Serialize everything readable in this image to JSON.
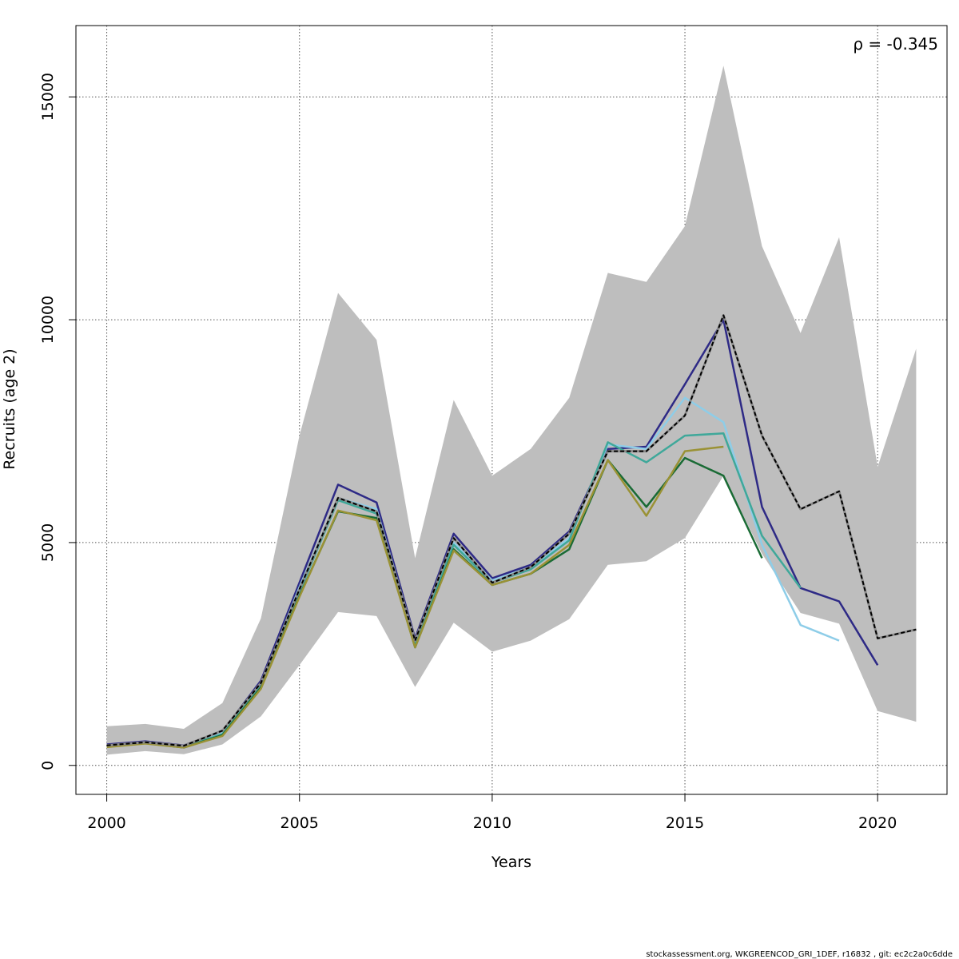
{
  "chart_data": {
    "type": "line",
    "title": "",
    "xlabel": "Years",
    "ylabel": "Recruits (age 2)",
    "annotation": "ρ = -0.345",
    "footer": "stockassessment.org, WKGREENCOD_GRI_1DEF, r16832 , git: ec2c2a0c6dde",
    "xlim": [
      1999.2,
      2021.8
    ],
    "ylim": [
      -650,
      16600
    ],
    "xticks": [
      2000,
      2005,
      2010,
      2015,
      2020
    ],
    "yticks": [
      0,
      5000,
      10000,
      15000
    ],
    "grid": true,
    "band": {
      "x": [
        2000,
        2001,
        2002,
        2003,
        2004,
        2005,
        2006,
        2007,
        2008,
        2009,
        2010,
        2011,
        2012,
        2013,
        2014,
        2015,
        2016,
        2017,
        2018,
        2019,
        2020,
        2021
      ],
      "upper": [
        880,
        930,
        820,
        1400,
        3300,
        7400,
        10600,
        9550,
        4650,
        8200,
        6500,
        7100,
        8250,
        11050,
        10850,
        12100,
        15700,
        11650,
        9700,
        11850,
        6700,
        9350
      ],
      "lower": [
        240,
        320,
        250,
        470,
        1100,
        2250,
        3440,
        3350,
        1760,
        3200,
        2550,
        2800,
        3280,
        4500,
        4580,
        5100,
        6500,
        4750,
        3420,
        3180,
        1220,
        980
      ],
      "color": "#bebebe"
    },
    "series": [
      {
        "color": "#000000",
        "style": "dashed",
        "x": [
          2000,
          2001,
          2002,
          2003,
          2004,
          2005,
          2006,
          2007,
          2008,
          2009,
          2010,
          2011,
          2012,
          2013,
          2014,
          2015,
          2016,
          2017,
          2018,
          2019,
          2020,
          2021
        ],
        "y": [
          450,
          520,
          440,
          780,
          1850,
          3950,
          6000,
          5700,
          2800,
          5100,
          4100,
          4450,
          5200,
          7050,
          7050,
          7850,
          10100,
          7400,
          5750,
          6150,
          2850,
          3050
        ]
      },
      {
        "color": "#2e2a86",
        "style": "solid",
        "x": [
          2000,
          2001,
          2002,
          2003,
          2004,
          2005,
          2006,
          2007,
          2008,
          2009,
          2010,
          2011,
          2012,
          2013,
          2014,
          2015,
          2016,
          2017,
          2018,
          2019,
          2020
        ],
        "y": [
          470,
          540,
          450,
          760,
          1900,
          4100,
          6300,
          5900,
          2850,
          5200,
          4200,
          4500,
          5250,
          7100,
          7150,
          8550,
          10000,
          5800,
          3980,
          3680,
          2250
        ]
      },
      {
        "color": "#8ecde8",
        "style": "solid",
        "x": [
          2000,
          2001,
          2002,
          2003,
          2004,
          2005,
          2006,
          2007,
          2008,
          2009,
          2010,
          2011,
          2012,
          2013,
          2014,
          2015,
          2016,
          2017,
          2018,
          2019
        ],
        "y": [
          440,
          520,
          430,
          730,
          1820,
          4000,
          6000,
          5750,
          2800,
          5000,
          4150,
          4450,
          5100,
          7200,
          7100,
          8250,
          7700,
          4950,
          3150,
          2800
        ]
      },
      {
        "color": "#3fa89a",
        "style": "solid",
        "x": [
          2000,
          2001,
          2002,
          2003,
          2004,
          2005,
          2006,
          2007,
          2008,
          2009,
          2010,
          2011,
          2012,
          2013,
          2014,
          2015,
          2016,
          2017,
          2018
        ],
        "y": [
          430,
          510,
          420,
          700,
          1800,
          3900,
          5950,
          5650,
          2750,
          4950,
          4100,
          4400,
          5050,
          7250,
          6800,
          7400,
          7450,
          5150,
          3980
        ]
      },
      {
        "color": "#1a6b35",
        "style": "solid",
        "x": [
          2000,
          2001,
          2002,
          2003,
          2004,
          2005,
          2006,
          2007,
          2008,
          2009,
          2010,
          2011,
          2012,
          2013,
          2014,
          2015,
          2016,
          2017
        ],
        "y": [
          420,
          500,
          400,
          680,
          1750,
          3800,
          5700,
          5550,
          2650,
          4850,
          4050,
          4300,
          4850,
          6850,
          5800,
          6900,
          6500,
          4650
        ]
      },
      {
        "color": "#9a9235",
        "style": "solid",
        "x": [
          2000,
          2001,
          2002,
          2003,
          2004,
          2005,
          2006,
          2007,
          2008,
          2009,
          2010,
          2011,
          2012,
          2013,
          2014,
          2015,
          2016
        ],
        "y": [
          410,
          490,
          400,
          660,
          1720,
          3780,
          5720,
          5500,
          2650,
          4820,
          4050,
          4300,
          4950,
          6850,
          5600,
          7050,
          7150
        ]
      }
    ]
  }
}
